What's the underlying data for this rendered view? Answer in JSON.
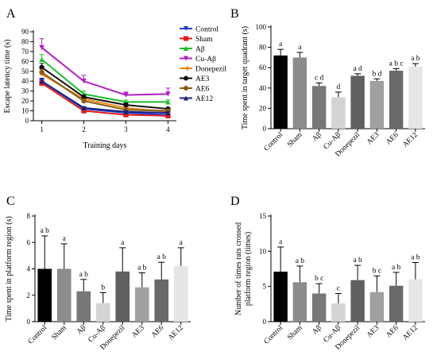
{
  "panels": {
    "A": {
      "letter": "A",
      "chart_data": {
        "type": "line",
        "title": "",
        "xlabel": "Training days",
        "ylabel": "Escape latency time (s)",
        "x": [
          1,
          2,
          3,
          4
        ],
        "xlim": [
          0.8,
          4.2
        ],
        "ylim": [
          0,
          90
        ],
        "yticks": [
          0,
          10,
          20,
          30,
          40,
          50,
          60,
          70,
          80,
          90
        ],
        "xticks": [
          1,
          2,
          3,
          4
        ],
        "legend": "top-right",
        "series": [
          {
            "name": "Control",
            "color": "#1f3fd6",
            "marker": "triangle-down",
            "values": [
              40,
              12,
              8,
              6
            ],
            "err": [
              3,
              1,
              1,
              1
            ]
          },
          {
            "name": "Sham",
            "color": "#e21b1b",
            "marker": "square",
            "values": [
              38,
              10,
              6,
              5
            ],
            "err": [
              3,
              1,
              1,
              1
            ]
          },
          {
            "name": "Aβ",
            "color": "#1dbd2b",
            "marker": "triangle-up",
            "values": [
              62,
              27,
              19,
              19
            ],
            "err": [
              5,
              3,
              2,
              2
            ]
          },
          {
            "name": "Cu-Aβ",
            "color": "#b21fc6",
            "marker": "triangle-down",
            "values": [
              74,
              40,
              26,
              27
            ],
            "err": [
              9,
              6,
              3,
              6
            ]
          },
          {
            "name": "Donepezil",
            "color": "#f08a1c",
            "marker": "tri-left",
            "values": [
              47,
              22,
              13,
              9
            ],
            "err": [
              3,
              2,
              1,
              1
            ]
          },
          {
            "name": "AE3",
            "color": "#111111",
            "marker": "circle",
            "values": [
              54,
              24,
              16,
              12
            ],
            "err": [
              4,
              2,
              2,
              1
            ]
          },
          {
            "name": "AE6",
            "color": "#8a5a14",
            "marker": "circle",
            "values": [
              49,
              20,
              11,
              10
            ],
            "err": [
              3,
              2,
              1,
              1
            ]
          },
          {
            "name": "AE12",
            "color": "#1a237e",
            "marker": "triangle-up",
            "values": [
              40,
              13,
              9,
              8
            ],
            "err": [
              3,
              1,
              1,
              1
            ]
          }
        ]
      }
    },
    "B": {
      "letter": "B",
      "chart_data": {
        "type": "bar",
        "title": "",
        "xlabel": "",
        "ylabel": "Time spent in target quadrant (s)",
        "ylim": [
          0,
          100
        ],
        "yticks": [
          0,
          20,
          40,
          60,
          80,
          100
        ],
        "categories": [
          "Control",
          "Sham",
          "Aβ",
          "Cu-Aβ",
          "Donepezil",
          "AE3",
          "AE6",
          "AE12"
        ],
        "values": [
          72,
          70,
          42,
          31,
          52,
          47,
          57,
          61
        ],
        "errors": [
          6,
          5,
          3,
          5,
          2,
          2,
          2,
          3
        ],
        "annotations": [
          "a",
          "a",
          "c d",
          "d",
          "a d",
          "b d",
          "a b c",
          "a b"
        ],
        "colors": [
          "#000000",
          "#8c8c8c",
          "#777777",
          "#d4d4d4",
          "#606060",
          "#a0a0a0",
          "#6a6a6a",
          "#e6e6e6"
        ]
      }
    },
    "C": {
      "letter": "C",
      "chart_data": {
        "type": "bar",
        "title": "",
        "xlabel": "",
        "ylabel": "Time spent in platform region (s)",
        "ylim": [
          0,
          8
        ],
        "yticks": [
          0,
          2,
          4,
          6,
          8
        ],
        "categories": [
          "Control",
          "Sham",
          "Aβ",
          "Cu-Aβ",
          "Donepezil",
          "AE3",
          "AE6",
          "AE12"
        ],
        "values": [
          4.0,
          4.0,
          2.3,
          1.4,
          3.8,
          2.6,
          3.2,
          4.2
        ],
        "errors": [
          2.5,
          1.9,
          0.9,
          0.8,
          1.8,
          1.1,
          1.3,
          1.4
        ],
        "annotations": [
          "a b",
          "a",
          "a b",
          "b",
          "a",
          "a b",
          "a b",
          "a"
        ],
        "colors": [
          "#000000",
          "#8c8c8c",
          "#777777",
          "#d4d4d4",
          "#606060",
          "#a0a0a0",
          "#6a6a6a",
          "#e6e6e6"
        ]
      }
    },
    "D": {
      "letter": "D",
      "chart_data": {
        "type": "bar",
        "title": "",
        "xlabel": "",
        "ylabel": "Number of times rats crossed platform region (times)",
        "ylabel_lines": [
          "Number of times rats crossed",
          "platform region (times)"
        ],
        "ylim": [
          0,
          15
        ],
        "yticks": [
          0,
          5,
          10,
          15
        ],
        "categories": [
          "Control",
          "Sham",
          "Aβ",
          "Cu-Aβ",
          "Donepezil",
          "AE3",
          "AE6",
          "AE12"
        ],
        "values": [
          7.1,
          5.6,
          4.0,
          2.6,
          5.9,
          4.2,
          5.1,
          6.0
        ],
        "errors": [
          3.5,
          2.3,
          1.4,
          1.4,
          2.1,
          2.3,
          1.9,
          2.4
        ],
        "annotations": [
          "a",
          "a b",
          "b c",
          "c",
          "a b",
          "b c",
          "a b",
          "a b"
        ],
        "colors": [
          "#000000",
          "#8c8c8c",
          "#777777",
          "#d4d4d4",
          "#606060",
          "#a0a0a0",
          "#6a6a6a",
          "#e6e6e6"
        ]
      }
    }
  }
}
